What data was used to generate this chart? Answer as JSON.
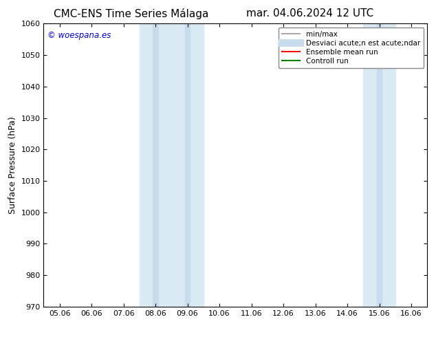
{
  "title_left": "CMC-ENS Time Series Málaga",
  "title_right": "mar. 04.06.2024 12 UTC",
  "ylabel": "Surface Pressure (hPa)",
  "ylim": [
    970,
    1060
  ],
  "yticks": [
    970,
    980,
    990,
    1000,
    1010,
    1020,
    1030,
    1040,
    1050,
    1060
  ],
  "xtick_labels": [
    "05.06",
    "06.06",
    "07.06",
    "08.06",
    "09.06",
    "10.06",
    "11.06",
    "12.06",
    "13.06",
    "14.06",
    "15.06",
    "16.06"
  ],
  "n_ticks": 12,
  "shade_columns": [
    3,
    4,
    10
  ],
  "shade_color_outer": "#daeaf5",
  "shade_color_inner": "#c8dcee",
  "watermark_text": "© woespana.es",
  "watermark_color": "#0000cc",
  "bg_color": "#ffffff",
  "legend_entries": [
    {
      "label": "min/max",
      "color": "#aaaaaa",
      "lw": 1.5
    },
    {
      "label": "Desviaci acute;n est acute;ndar",
      "color": "#c8dcee",
      "lw": 8
    },
    {
      "label": "Ensemble mean run",
      "color": "#ff0000",
      "lw": 1.5
    },
    {
      "label": "Controll run",
      "color": "#008000",
      "lw": 1.5
    }
  ],
  "title_fontsize": 11,
  "axis_fontsize": 9,
  "tick_fontsize": 8,
  "legend_fontsize": 7.5
}
